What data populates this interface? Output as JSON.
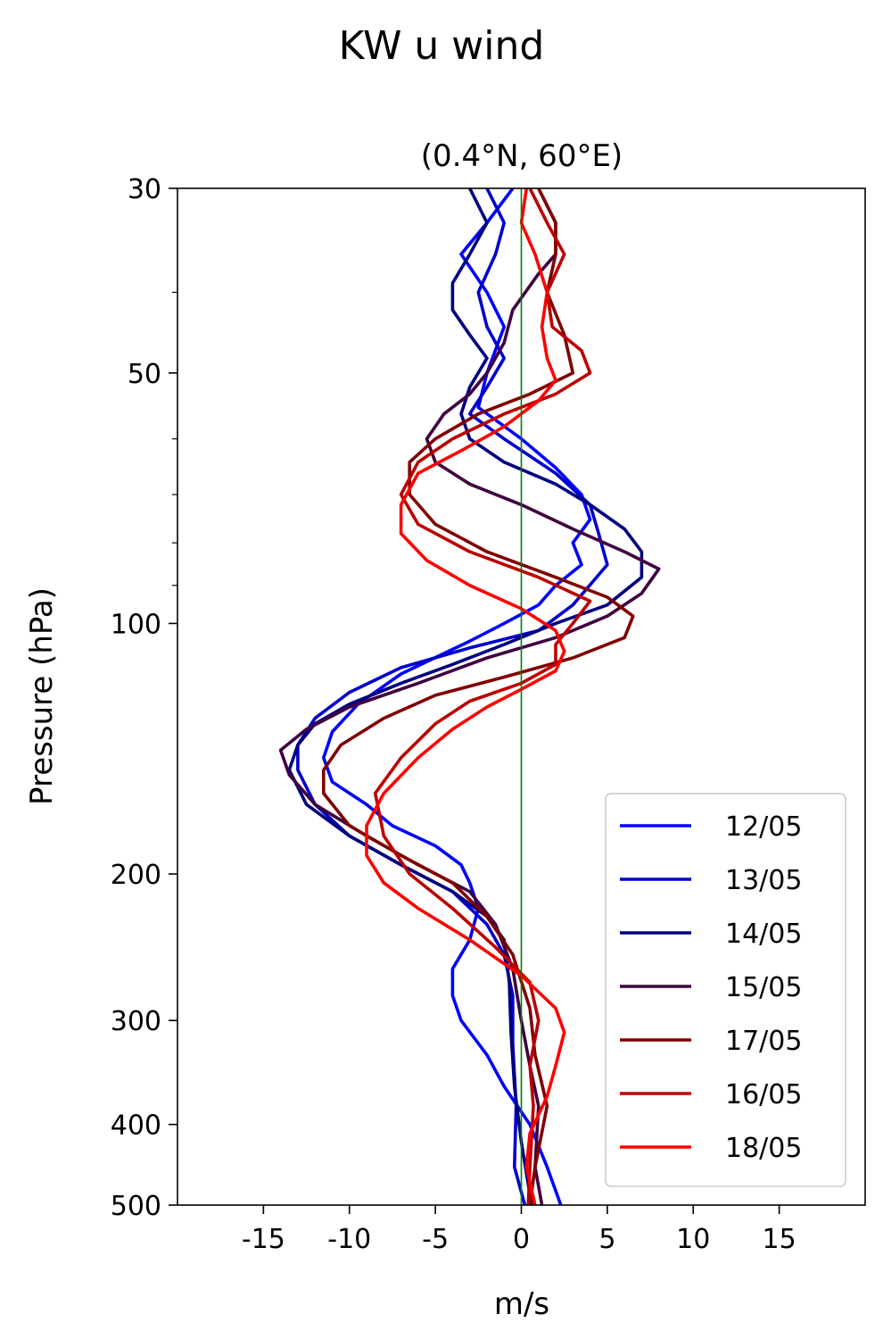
{
  "figure": {
    "suptitle": "KW u wind"
  },
  "chart_data": {
    "type": "line",
    "title": "(0.4°N, 60°E)",
    "xlabel": "m/s",
    "ylabel": "Pressure (hPa)",
    "xlim": [
      -20,
      20
    ],
    "ylim": [
      500,
      30
    ],
    "y_scale": "log",
    "x_ticks": [
      -15,
      -10,
      -5,
      0,
      5,
      10,
      15
    ],
    "x_tick_labels": [
      "-15",
      "-10",
      "-5",
      "0",
      "5",
      "10",
      "15"
    ],
    "y_ticks": [
      30,
      50,
      100,
      200,
      300,
      400,
      500
    ],
    "y_tick_labels": [
      "30",
      "50",
      "100",
      "200",
      "300",
      "400",
      "500"
    ],
    "y_minor_ticks": [
      40,
      60,
      70,
      80,
      90
    ],
    "grid": false,
    "legend_position": "lower-right",
    "zero_line_color": "#008000",
    "series": [
      {
        "name": "12/05",
        "color": "#0000ff",
        "points": [
          [
            -0.5,
            30
          ],
          [
            -2,
            33
          ],
          [
            -3.5,
            36
          ],
          [
            -2,
            40
          ],
          [
            -1,
            44
          ],
          [
            -2,
            50
          ],
          [
            -2.5,
            55
          ],
          [
            0,
            60
          ],
          [
            2,
            65
          ],
          [
            3.5,
            70
          ],
          [
            4,
            75
          ],
          [
            3,
            80
          ],
          [
            3.5,
            85
          ],
          [
            2,
            90
          ],
          [
            1,
            95
          ],
          [
            -1,
            100
          ],
          [
            -3,
            105
          ],
          [
            -7,
            115
          ],
          [
            -9.5,
            125
          ],
          [
            -11,
            135
          ],
          [
            -11.5,
            145
          ],
          [
            -11,
            155
          ],
          [
            -9,
            165
          ],
          [
            -7.5,
            175
          ],
          [
            -5,
            185
          ],
          [
            -3.5,
            195
          ],
          [
            -3,
            205
          ],
          [
            -2.5,
            220
          ],
          [
            -3,
            240
          ],
          [
            -4,
            260
          ],
          [
            -4,
            280
          ],
          [
            -3.5,
            300
          ],
          [
            -2,
            330
          ],
          [
            -1,
            360
          ],
          [
            0.5,
            400
          ],
          [
            1.5,
            450
          ],
          [
            2.3,
            500
          ]
        ]
      },
      {
        "name": "13/05",
        "color": "#0000cc",
        "points": [
          [
            -2,
            30
          ],
          [
            -1,
            33
          ],
          [
            -1.5,
            36
          ],
          [
            -2.5,
            40
          ],
          [
            -2,
            44
          ],
          [
            -1,
            48
          ],
          [
            -2,
            52
          ],
          [
            -3,
            56
          ],
          [
            -1,
            60
          ],
          [
            2,
            66
          ],
          [
            4,
            72
          ],
          [
            4.5,
            78
          ],
          [
            5,
            85
          ],
          [
            3,
            95
          ],
          [
            1,
            102
          ],
          [
            -3,
            107
          ],
          [
            -7,
            113
          ],
          [
            -10,
            121
          ],
          [
            -12,
            130
          ],
          [
            -13,
            140
          ],
          [
            -13,
            150
          ],
          [
            -12,
            165
          ],
          [
            -10,
            180
          ],
          [
            -7,
            195
          ],
          [
            -4,
            210
          ],
          [
            -2,
            230
          ],
          [
            -1,
            250
          ],
          [
            -0.5,
            280
          ],
          [
            -0.5,
            320
          ],
          [
            -0.3,
            380
          ],
          [
            -0.4,
            450
          ],
          [
            0.2,
            500
          ]
        ]
      },
      {
        "name": "14/05",
        "color": "#000080",
        "points": [
          [
            -3,
            30
          ],
          [
            -2,
            33
          ],
          [
            -3,
            36
          ],
          [
            -4,
            39
          ],
          [
            -4,
            42
          ],
          [
            -3,
            45
          ],
          [
            -2,
            48
          ],
          [
            -3,
            52
          ],
          [
            -3.5,
            56
          ],
          [
            -3,
            60
          ],
          [
            -1,
            64
          ],
          [
            2,
            68
          ],
          [
            4,
            72
          ],
          [
            6,
            77
          ],
          [
            7,
            82
          ],
          [
            7,
            88
          ],
          [
            5,
            95
          ],
          [
            2,
            100
          ],
          [
            -1,
            106
          ],
          [
            -4,
            112
          ],
          [
            -7,
            118
          ],
          [
            -10,
            125
          ],
          [
            -12,
            132
          ],
          [
            -13,
            140
          ],
          [
            -13.5,
            150
          ],
          [
            -12.5,
            165
          ],
          [
            -10,
            180
          ],
          [
            -7,
            195
          ],
          [
            -4,
            210
          ],
          [
            -2,
            225
          ],
          [
            -1,
            240
          ],
          [
            -0.7,
            270
          ],
          [
            -0.6,
            310
          ],
          [
            -0.4,
            360
          ],
          [
            0,
            420
          ],
          [
            0.6,
            500
          ]
        ]
      },
      {
        "name": "15/05",
        "color": "#400040",
        "points": [
          [
            1,
            30
          ],
          [
            2,
            33
          ],
          [
            2,
            36
          ],
          [
            1,
            38
          ],
          [
            -0.5,
            42
          ],
          [
            -1,
            46
          ],
          [
            -2,
            50
          ],
          [
            -3,
            53
          ],
          [
            -4.5,
            56
          ],
          [
            -5.5,
            60
          ],
          [
            -5,
            64
          ],
          [
            -3,
            68
          ],
          [
            0,
            72
          ],
          [
            3,
            77
          ],
          [
            6,
            82
          ],
          [
            8,
            86
          ],
          [
            7,
            92
          ],
          [
            5,
            98
          ],
          [
            2,
            104
          ],
          [
            -2,
            110
          ],
          [
            -6,
            118
          ],
          [
            -10,
            126
          ],
          [
            -12.5,
            134
          ],
          [
            -14,
            142
          ],
          [
            -13.5,
            152
          ],
          [
            -12,
            165
          ],
          [
            -9,
            180
          ],
          [
            -6,
            195
          ],
          [
            -3,
            210
          ],
          [
            -1.5,
            230
          ],
          [
            -0.5,
            260
          ],
          [
            0,
            300
          ],
          [
            0.5,
            340
          ],
          [
            1,
            380
          ],
          [
            0.8,
            450
          ],
          [
            1.2,
            500
          ]
        ]
      },
      {
        "name": "17/05",
        "color": "#800000",
        "points": [
          [
            1,
            30
          ],
          [
            2,
            33
          ],
          [
            2,
            36
          ],
          [
            1.5,
            40
          ],
          [
            2.5,
            45
          ],
          [
            3,
            50
          ],
          [
            0.5,
            53
          ],
          [
            -2.5,
            56
          ],
          [
            -5,
            60
          ],
          [
            -6.5,
            64
          ],
          [
            -6.5,
            70
          ],
          [
            -5,
            76
          ],
          [
            -2,
            82
          ],
          [
            2,
            88
          ],
          [
            5,
            93
          ],
          [
            6.5,
            98
          ],
          [
            6,
            104
          ],
          [
            3,
            110
          ],
          [
            -1,
            116
          ],
          [
            -5,
            122
          ],
          [
            -8,
            130
          ],
          [
            -10.5,
            140
          ],
          [
            -11.5,
            150
          ],
          [
            -11.5,
            160
          ],
          [
            -10,
            175
          ],
          [
            -7,
            190
          ],
          [
            -4,
            205
          ],
          [
            -2,
            225
          ],
          [
            -0.5,
            250
          ],
          [
            0.5,
            290
          ],
          [
            0.8,
            330
          ],
          [
            1.5,
            380
          ],
          [
            0.8,
            450
          ],
          [
            0.5,
            500
          ]
        ]
      },
      {
        "name": "16/05",
        "color": "#bb0000",
        "points": [
          [
            0.5,
            30
          ],
          [
            1.5,
            33
          ],
          [
            2.5,
            36
          ],
          [
            1.5,
            40
          ],
          [
            1.8,
            44
          ],
          [
            3.5,
            47
          ],
          [
            4,
            50
          ],
          [
            2,
            53
          ],
          [
            -1,
            56
          ],
          [
            -4,
            60
          ],
          [
            -6,
            64
          ],
          [
            -7,
            70
          ],
          [
            -6,
            76
          ],
          [
            -3,
            82
          ],
          [
            1,
            88
          ],
          [
            4,
            94
          ],
          [
            3,
            100
          ],
          [
            2,
            106
          ],
          [
            2,
            112
          ],
          [
            0,
            118
          ],
          [
            -3,
            124
          ],
          [
            -5,
            132
          ],
          [
            -7,
            145
          ],
          [
            -8.5,
            160
          ],
          [
            -8,
            180
          ],
          [
            -6.5,
            200
          ],
          [
            -4,
            220
          ],
          [
            -1.5,
            245
          ],
          [
            0.5,
            270
          ],
          [
            1,
            300
          ],
          [
            0.5,
            340
          ],
          [
            0.7,
            380
          ],
          [
            0.5,
            450
          ],
          [
            0.4,
            500
          ]
        ]
      },
      {
        "name": "18/05",
        "color": "#ff0000",
        "points": [
          [
            0.3,
            30
          ],
          [
            0,
            33
          ],
          [
            0.8,
            36
          ],
          [
            1.5,
            40
          ],
          [
            1.2,
            44
          ],
          [
            1.5,
            48
          ],
          [
            2,
            51
          ],
          [
            1,
            54
          ],
          [
            -1,
            58
          ],
          [
            -3.5,
            62
          ],
          [
            -6,
            66
          ],
          [
            -7,
            72
          ],
          [
            -7,
            78
          ],
          [
            -5.5,
            84
          ],
          [
            -3,
            90
          ],
          [
            0,
            96
          ],
          [
            2,
            102
          ],
          [
            2.5,
            108
          ],
          [
            2,
            114
          ],
          [
            0,
            120
          ],
          [
            -2,
            126
          ],
          [
            -4,
            134
          ],
          [
            -6,
            145
          ],
          [
            -8,
            160
          ],
          [
            -9,
            175
          ],
          [
            -9,
            190
          ],
          [
            -8,
            205
          ],
          [
            -6,
            220
          ],
          [
            -3,
            240
          ],
          [
            0,
            265
          ],
          [
            2,
            290
          ],
          [
            2.5,
            310
          ],
          [
            2,
            340
          ],
          [
            1.5,
            370
          ],
          [
            0.5,
            410
          ],
          [
            0.3,
            450
          ],
          [
            0.8,
            500
          ]
        ]
      }
    ]
  }
}
